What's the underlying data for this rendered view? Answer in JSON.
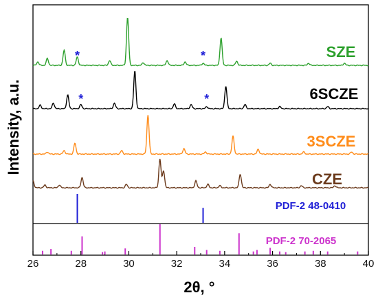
{
  "chart_data": {
    "type": "line",
    "xlabel": "2θ, °",
    "ylabel": "Intensity, a.u.",
    "xlim": [
      26,
      40
    ],
    "xticks": [
      26,
      28,
      30,
      32,
      34,
      36,
      38,
      40
    ],
    "series": [
      {
        "name": "SZE",
        "color": "#2ca02c",
        "baseline": 95,
        "peaks": [
          [
            26.2,
            5
          ],
          [
            26.6,
            10
          ],
          [
            27.3,
            22
          ],
          [
            27.85,
            12
          ],
          [
            29.2,
            7
          ],
          [
            29.95,
            70
          ],
          [
            30.6,
            4
          ],
          [
            31.6,
            7
          ],
          [
            32.35,
            5
          ],
          [
            33.1,
            3
          ],
          [
            33.85,
            40
          ],
          [
            34.5,
            6
          ],
          [
            35.9,
            3
          ],
          [
            37.5,
            3
          ],
          [
            39.0,
            3
          ]
        ],
        "stars": [
          27.85,
          33.1
        ]
      },
      {
        "name": "6SCZE",
        "color": "#000000",
        "baseline": 158,
        "peaks": [
          [
            26.3,
            5
          ],
          [
            26.85,
            8
          ],
          [
            27.45,
            20
          ],
          [
            28.0,
            6
          ],
          [
            29.4,
            8
          ],
          [
            30.25,
            55
          ],
          [
            31.9,
            7
          ],
          [
            32.6,
            6
          ],
          [
            33.25,
            3
          ],
          [
            34.05,
            33
          ],
          [
            34.85,
            6
          ],
          [
            36.3,
            3
          ],
          [
            38.3,
            3
          ]
        ],
        "stars": [
          28.0,
          33.25
        ]
      },
      {
        "name": "3SCZE",
        "color": "#ff8c1a",
        "baseline": 224,
        "peaks": [
          [
            26.6,
            3
          ],
          [
            27.3,
            5
          ],
          [
            27.75,
            16
          ],
          [
            29.7,
            5
          ],
          [
            30.8,
            57
          ],
          [
            32.3,
            8
          ],
          [
            33.2,
            3
          ],
          [
            34.35,
            26
          ],
          [
            35.4,
            7
          ],
          [
            37.3,
            3
          ],
          [
            39.3,
            3
          ]
        ],
        "stars": []
      },
      {
        "name": "CZE",
        "color": "#6b3a1c",
        "baseline": 273,
        "peaks": [
          [
            26.0,
            10
          ],
          [
            26.5,
            4
          ],
          [
            27.1,
            4
          ],
          [
            28.05,
            15
          ],
          [
            29.9,
            5
          ],
          [
            31.3,
            42
          ],
          [
            31.45,
            25
          ],
          [
            32.8,
            10
          ],
          [
            33.3,
            5
          ],
          [
            33.8,
            3
          ],
          [
            34.65,
            20
          ],
          [
            35.9,
            5
          ],
          [
            37.2,
            3
          ],
          [
            38.6,
            3
          ]
        ],
        "stars": []
      }
    ],
    "references": [
      {
        "name": "PDF-2 48-0410",
        "color": "#1f1fd6",
        "bottom": 324,
        "lines": [
          [
            27.85,
            1.0
          ],
          [
            33.1,
            0.52
          ]
        ]
      },
      {
        "name": "PDF-2 70-2065",
        "color": "#cc33cc",
        "bottom": 370,
        "lines": [
          [
            26.4,
            0.12
          ],
          [
            26.75,
            0.18
          ],
          [
            27.6,
            0.12
          ],
          [
            28.05,
            0.6
          ],
          [
            28.9,
            0.08
          ],
          [
            29.0,
            0.1
          ],
          [
            29.85,
            0.2
          ],
          [
            31.3,
            1.0
          ],
          [
            32.75,
            0.25
          ],
          [
            33.25,
            0.15
          ],
          [
            33.8,
            0.12
          ],
          [
            34.6,
            0.7
          ],
          [
            35.2,
            0.1
          ],
          [
            35.35,
            0.15
          ],
          [
            35.9,
            0.22
          ],
          [
            36.3,
            0.1
          ],
          [
            36.55,
            0.08
          ],
          [
            37.35,
            0.1
          ],
          [
            37.7,
            0.12
          ],
          [
            38.3,
            0.1
          ],
          [
            39.55,
            0.1
          ]
        ]
      }
    ]
  }
}
